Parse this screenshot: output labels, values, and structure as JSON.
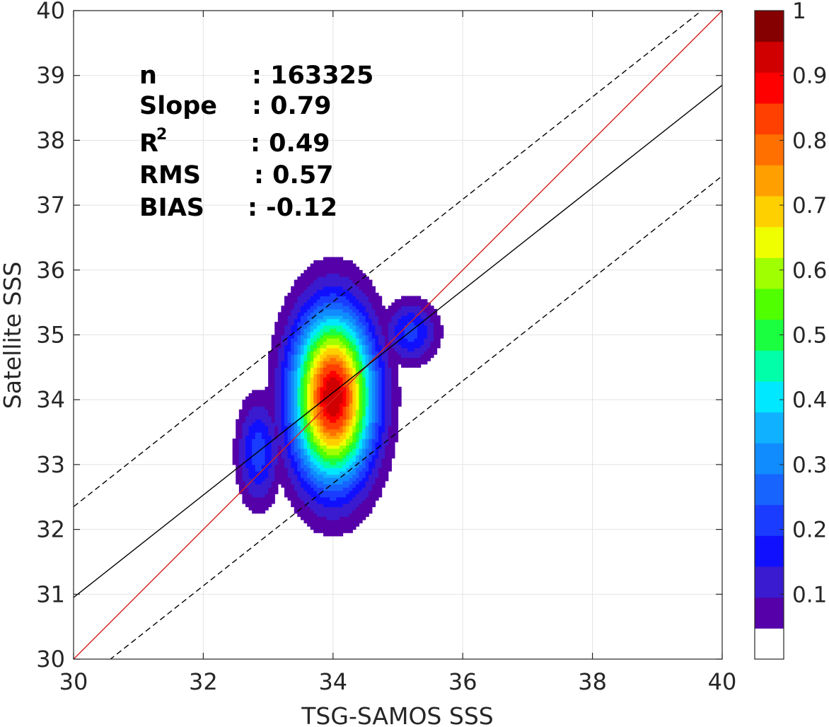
{
  "chart_data": {
    "type": "contour",
    "xlabel": "TSG-SAMOS SSS",
    "ylabel": "Satellite SSS",
    "xlim": [
      30,
      40
    ],
    "ylim": [
      30,
      40
    ],
    "xticks": [
      30,
      32,
      34,
      36,
      38,
      40
    ],
    "yticks": [
      30,
      31,
      32,
      33,
      34,
      35,
      36,
      37,
      38,
      39,
      40
    ],
    "grid": true,
    "stats": [
      {
        "label": "n",
        "value": ": 163325"
      },
      {
        "label": "Slope",
        "value": ": 0.79"
      },
      {
        "label": "R",
        "superscript": "2",
        "value": ": 0.49"
      },
      {
        "label": "RMS",
        "value": ": 0.57"
      },
      {
        "label": "BIAS",
        "value": ": -0.12"
      }
    ],
    "lines": [
      {
        "role": "one-to-one",
        "color": "#d62020",
        "style": "solid",
        "x": [
          30,
          40
        ],
        "y": [
          30,
          40
        ]
      },
      {
        "role": "fit",
        "color": "#000000",
        "style": "solid",
        "x": [
          30,
          40
        ],
        "y": [
          30.95,
          38.85
        ]
      },
      {
        "role": "upper-bound",
        "color": "#000000",
        "style": "dashed",
        "x": [
          30,
          40
        ],
        "y": [
          32.35,
          40.25
        ]
      },
      {
        "role": "lower-bound",
        "color": "#000000",
        "style": "dashed",
        "x": [
          30,
          40
        ],
        "y": [
          29.55,
          37.45
        ]
      }
    ],
    "density_clusters": [
      {
        "center": [
          34.0,
          34.05
        ],
        "sx": 0.42,
        "sy": 0.88,
        "peak": 1.0
      },
      {
        "center": [
          32.85,
          33.2
        ],
        "sx": 0.22,
        "sy": 0.55,
        "peak": 0.23
      },
      {
        "center": [
          35.2,
          35.05
        ],
        "sx": 0.28,
        "sy": 0.32,
        "peak": 0.22
      }
    ],
    "contour_levels": [
      0.05,
      0.1,
      0.15,
      0.2,
      0.25,
      0.3,
      0.35,
      0.4,
      0.45,
      0.5,
      0.55,
      0.6,
      0.65,
      0.7,
      0.75,
      0.8,
      0.85,
      0.9,
      0.95
    ],
    "colorbar": {
      "range": [
        0,
        1
      ],
      "ticks": [
        "0.1",
        "0.2",
        "0.3",
        "0.4",
        "0.5",
        "0.6",
        "0.7",
        "0.8",
        "0.9",
        "1"
      ],
      "tick_values": [
        0.1,
        0.2,
        0.3,
        0.4,
        0.5,
        0.6,
        0.7,
        0.8,
        0.9,
        1.0
      ],
      "colors": [
        "#ffffff",
        "#5500a8",
        "#3a1bcf",
        "#1010ff",
        "#1a3cff",
        "#1764ff",
        "#108cff",
        "#10b2ff",
        "#00e8ff",
        "#00ffa8",
        "#1aff40",
        "#50ff00",
        "#a0ff00",
        "#f0ff00",
        "#ffd000",
        "#ffa000",
        "#ff7000",
        "#ff4000",
        "#ff0000",
        "#d00000",
        "#850000"
      ]
    }
  }
}
